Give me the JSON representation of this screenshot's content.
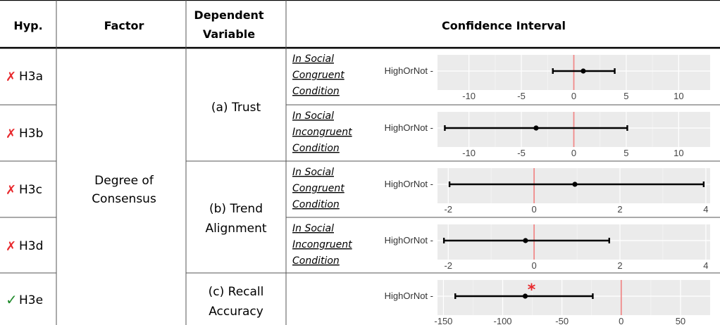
{
  "header": {
    "hyp": "Hyp.",
    "factor": "Factor",
    "dependent_line1": "Dependent",
    "dependent_line2": "Variable",
    "ci": "Confidence Interval"
  },
  "factor": {
    "line1": "Degree of",
    "line2": "Consensus"
  },
  "dependent_variables": [
    {
      "id": "trust",
      "lines": [
        "(a) Trust"
      ]
    },
    {
      "id": "trend",
      "lines": [
        "(b) Trend",
        "Alignment"
      ]
    },
    {
      "id": "recall",
      "lines": [
        "(c) Recall",
        "Accuracy"
      ]
    }
  ],
  "colors": {
    "fail": "#e8282c",
    "pass": "#1f8a2a",
    "zero_line": "#f08a8a",
    "panel": "#ebebeb",
    "grid": "#ffffff",
    "significance": "#e8282c"
  },
  "rows": [
    {
      "id": "H3a",
      "mark": "✗",
      "mark_icon": "cross-icon",
      "status": "fail",
      "label": "H3a",
      "condition": [
        "In Social",
        "Congruent ",
        "Condition"
      ]
    },
    {
      "id": "H3b",
      "mark": "✗",
      "mark_icon": "cross-icon",
      "status": "fail",
      "label": "H3b",
      "condition": [
        "In Social",
        "Incongruent ",
        "Condition"
      ]
    },
    {
      "id": "H3c",
      "mark": "✗",
      "mark_icon": "cross-icon",
      "status": "fail",
      "label": "H3c",
      "condition": [
        "In Social",
        "Congruent ",
        "Condition"
      ]
    },
    {
      "id": "H3d",
      "mark": "✗",
      "mark_icon": "cross-icon",
      "status": "fail",
      "label": "H3d",
      "condition": [
        "In Social",
        "Incongruent ",
        "Condition"
      ]
    },
    {
      "id": "H3e",
      "mark": "✓",
      "mark_icon": "check-icon",
      "status": "pass",
      "label": "H3e",
      "condition": []
    }
  ],
  "chart_data": [
    {
      "type": "errorbar",
      "row": "H3a",
      "ylabel": "HighOrNot",
      "xlim": [
        -13,
        13
      ],
      "ticks": [
        -10,
        -5,
        0,
        5,
        10
      ],
      "tick_labels": [
        "-10",
        "-5",
        "0",
        "5",
        "10"
      ],
      "estimate": 0.9,
      "lower": -2.0,
      "upper": 3.9,
      "reference": 0,
      "significant": false
    },
    {
      "type": "errorbar",
      "row": "H3b",
      "ylabel": "HighOrNot",
      "xlim": [
        -13,
        13
      ],
      "ticks": [
        -10,
        -5,
        0,
        5,
        10
      ],
      "tick_labels": [
        "-10",
        "-5",
        "0",
        "5",
        "10"
      ],
      "estimate": -3.6,
      "lower": -12.3,
      "upper": 5.1,
      "reference": 0,
      "significant": false
    },
    {
      "type": "errorbar",
      "row": "H3c",
      "ylabel": "HighOrNot",
      "xlim": [
        -2.25,
        4.1
      ],
      "ticks": [
        -2,
        0,
        2,
        4
      ],
      "tick_labels": [
        "-2",
        "0",
        "2",
        "4"
      ],
      "estimate": 0.95,
      "lower": -1.97,
      "upper": 3.95,
      "reference": 0,
      "significant": false
    },
    {
      "type": "errorbar",
      "row": "H3d",
      "ylabel": "HighOrNot",
      "xlim": [
        -2.25,
        4.1
      ],
      "ticks": [
        -2,
        0,
        2,
        4
      ],
      "tick_labels": [
        "-2",
        "0",
        "2",
        "4"
      ],
      "estimate": -0.2,
      "lower": -2.1,
      "upper": 1.75,
      "reference": 0,
      "significant": false
    },
    {
      "type": "errorbar",
      "row": "H3e",
      "ylabel": "HighOrNot",
      "xlim": [
        -155,
        75
      ],
      "ticks": [
        -150,
        -100,
        -50,
        0,
        50
      ],
      "tick_labels": [
        "-150",
        "-100",
        "-50",
        "0",
        "50"
      ],
      "estimate": -81,
      "lower": -140,
      "upper": -24,
      "reference": 0,
      "significant": true,
      "significance_mark": "*"
    }
  ]
}
